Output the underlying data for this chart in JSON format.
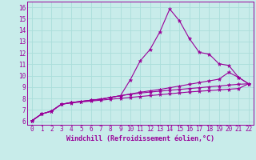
{
  "xlabel": "Windchill (Refroidissement éolien,°C)",
  "xlim": [
    -0.5,
    22.5
  ],
  "ylim": [
    5.7,
    16.5
  ],
  "xticks": [
    0,
    1,
    2,
    3,
    4,
    5,
    6,
    7,
    8,
    9,
    10,
    11,
    12,
    13,
    14,
    15,
    16,
    17,
    18,
    19,
    20,
    21,
    22
  ],
  "yticks": [
    6,
    7,
    8,
    9,
    10,
    11,
    12,
    13,
    14,
    15,
    16
  ],
  "bg_color": "#c8ecea",
  "line_color": "#990099",
  "grid_color": "#aaddda",
  "series": [
    {
      "x": [
        0,
        1,
        2,
        3,
        4,
        5,
        6,
        7,
        8,
        9,
        10,
        11,
        12,
        13,
        14,
        15,
        16,
        17,
        18,
        19,
        20,
        21,
        22
      ],
      "y": [
        6.05,
        6.65,
        6.9,
        7.5,
        7.65,
        7.75,
        7.85,
        7.95,
        8.1,
        8.25,
        9.65,
        11.3,
        12.3,
        13.85,
        15.85,
        14.8,
        13.25,
        12.05,
        11.9,
        11.05,
        10.9,
        9.85,
        9.3
      ]
    },
    {
      "x": [
        0,
        1,
        2,
        3,
        4,
        5,
        6,
        7,
        8,
        9,
        10,
        11,
        12,
        13,
        14,
        15,
        16,
        17,
        18,
        19,
        20,
        21,
        22
      ],
      "y": [
        6.05,
        6.65,
        6.9,
        7.5,
        7.65,
        7.75,
        7.85,
        7.95,
        8.1,
        8.25,
        8.4,
        8.55,
        8.68,
        8.8,
        8.95,
        9.1,
        9.25,
        9.4,
        9.55,
        9.7,
        10.3,
        9.85,
        9.3
      ]
    },
    {
      "x": [
        0,
        1,
        2,
        3,
        4,
        5,
        6,
        7,
        8,
        9,
        10,
        11,
        12,
        13,
        14,
        15,
        16,
        17,
        18,
        19,
        20,
        21,
        22
      ],
      "y": [
        6.05,
        6.65,
        6.9,
        7.5,
        7.65,
        7.75,
        7.85,
        7.95,
        8.1,
        8.25,
        8.38,
        8.48,
        8.57,
        8.65,
        8.73,
        8.8,
        8.88,
        8.95,
        9.03,
        9.1,
        9.18,
        9.25,
        9.3
      ]
    },
    {
      "x": [
        0,
        1,
        2,
        3,
        4,
        5,
        6,
        7,
        8,
        9,
        10,
        11,
        12,
        13,
        14,
        15,
        16,
        17,
        18,
        19,
        20,
        21,
        22
      ],
      "y": [
        6.05,
        6.65,
        6.9,
        7.5,
        7.62,
        7.7,
        7.78,
        7.86,
        7.94,
        8.02,
        8.1,
        8.18,
        8.26,
        8.34,
        8.42,
        8.5,
        8.58,
        8.64,
        8.7,
        8.76,
        8.82,
        8.88,
        9.3
      ]
    }
  ]
}
